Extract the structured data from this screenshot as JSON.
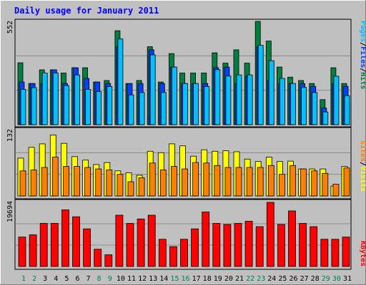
{
  "title": "Daily usage for January 2011",
  "colors": {
    "background": "#c0c0c0",
    "title": "#0000ff",
    "hits": "#008040",
    "files": "#0040ff",
    "pages": "#00c0ff",
    "visits": "#ffff00",
    "sites": "#ff8000",
    "kbytes": "#ff0000",
    "weekend_day": "#00805c",
    "weekday": "#000000"
  },
  "chart_data": [
    {
      "type": "bar",
      "panel": "hits-files-pages",
      "legend": [
        "Pages",
        "Files",
        "Hits"
      ],
      "y_max_label": "552",
      "ylim": [
        0,
        552
      ],
      "categories": [
        "1",
        "2",
        "3",
        "4",
        "5",
        "6",
        "7",
        "8",
        "9",
        "10",
        "11",
        "12",
        "13",
        "14",
        "15",
        "16",
        "17",
        "18",
        "19",
        "20",
        "21",
        "22",
        "23",
        "24",
        "25",
        "26",
        "27",
        "28",
        "29",
        "30",
        "31"
      ],
      "series": [
        {
          "name": "Hits",
          "values": [
            331,
            220,
            293,
            293,
            276,
            304,
            304,
            228,
            236,
            502,
            220,
            236,
            417,
            228,
            380,
            276,
            276,
            276,
            384,
            329,
            400,
            329,
            552,
            447,
            308,
            254,
            236,
            220,
            134,
            304,
            220
          ]
        },
        {
          "name": "Files",
          "values": [
            228,
            220,
            220,
            293,
            220,
            304,
            247,
            228,
            220,
            416,
            220,
            220,
            400,
            220,
            308,
            220,
            220,
            220,
            304,
            308,
            220,
            260,
            416,
            236,
            220,
            220,
            220,
            205,
            89,
            220,
            205
          ]
        },
        {
          "name": "Pages",
          "values": [
            189,
            198,
            276,
            276,
            209,
            266,
            189,
            177,
            204,
            458,
            159,
            172,
            373,
            172,
            308,
            220,
            220,
            204,
            294,
            260,
            266,
            266,
            424,
            342,
            247,
            220,
            200,
            172,
            68,
            259,
            155
          ]
        }
      ]
    },
    {
      "type": "bar",
      "panel": "visits-sites",
      "legend": [
        "Sites",
        "Visits"
      ],
      "y_max_label": "132",
      "ylim": [
        0,
        132
      ],
      "categories": [
        "1",
        "2",
        "3",
        "4",
        "5",
        "6",
        "7",
        "8",
        "9",
        "10",
        "11",
        "12",
        "13",
        "14",
        "15",
        "16",
        "17",
        "18",
        "19",
        "20",
        "21",
        "22",
        "23",
        "24",
        "25",
        "26",
        "27",
        "28",
        "29",
        "30",
        "31"
      ],
      "series": [
        {
          "name": "Visits",
          "values": [
            77,
            99,
            106,
            124,
            107,
            80,
            73,
            64,
            68,
            51,
            47,
            42,
            91,
            88,
            106,
            102,
            81,
            94,
            91,
            92,
            90,
            75,
            70,
            79,
            70,
            71,
            55,
            55,
            55,
            20,
            60
          ]
        },
        {
          "name": "Sites",
          "values": [
            51,
            53,
            58,
            79,
            60,
            60,
            58,
            55,
            53,
            44,
            29,
            37,
            67,
            53,
            60,
            55,
            68,
            67,
            62,
            58,
            58,
            58,
            58,
            62,
            44,
            62,
            55,
            51,
            46,
            24,
            57
          ]
        }
      ]
    },
    {
      "type": "bar",
      "panel": "kbytes",
      "legend": [
        "KBytes"
      ],
      "y_max_label": "19694",
      "ylim": [
        0,
        19694
      ],
      "categories": [
        "1",
        "2",
        "3",
        "4",
        "5",
        "6",
        "7",
        "8",
        "9",
        "10",
        "11",
        "12",
        "13",
        "14",
        "15",
        "16",
        "17",
        "18",
        "19",
        "20",
        "21",
        "22",
        "23",
        "24",
        "25",
        "26",
        "27",
        "28",
        "29",
        "30",
        "31"
      ],
      "series": [
        {
          "name": "KBytes",
          "values": [
            9032,
            9711,
            13240,
            13240,
            17394,
            15276,
            11544,
            5297,
            3581,
            15751,
            13240,
            14597,
            15751,
            8355,
            6112,
            8355,
            11544,
            16734,
            13240,
            12904,
            13240,
            13919,
            12225,
            19694,
            12904,
            17059,
            13240,
            12225,
            8355,
            8355,
            9032
          ]
        }
      ]
    }
  ],
  "x_labels": [
    {
      "text": "1",
      "weekend": true
    },
    {
      "text": "2",
      "weekend": true
    },
    {
      "text": "3",
      "weekend": false
    },
    {
      "text": "4",
      "weekend": false
    },
    {
      "text": "5",
      "weekend": false
    },
    {
      "text": "6",
      "weekend": false
    },
    {
      "text": "7",
      "weekend": false
    },
    {
      "text": "8",
      "weekend": true
    },
    {
      "text": "9",
      "weekend": true
    },
    {
      "text": "10",
      "weekend": false
    },
    {
      "text": "11",
      "weekend": false
    },
    {
      "text": "12",
      "weekend": false
    },
    {
      "text": "13",
      "weekend": false
    },
    {
      "text": "14",
      "weekend": false
    },
    {
      "text": "15",
      "weekend": true
    },
    {
      "text": "16",
      "weekend": true
    },
    {
      "text": "17",
      "weekend": false
    },
    {
      "text": "18",
      "weekend": false
    },
    {
      "text": "19",
      "weekend": false
    },
    {
      "text": "20",
      "weekend": false
    },
    {
      "text": "21",
      "weekend": false
    },
    {
      "text": "22",
      "weekend": true
    },
    {
      "text": "23",
      "weekend": true
    },
    {
      "text": "24",
      "weekend": false
    },
    {
      "text": "25",
      "weekend": false
    },
    {
      "text": "26",
      "weekend": false
    },
    {
      "text": "27",
      "weekend": false
    },
    {
      "text": "28",
      "weekend": false
    },
    {
      "text": "29",
      "weekend": true
    },
    {
      "text": "30",
      "weekend": true
    },
    {
      "text": "31",
      "weekend": false
    }
  ]
}
